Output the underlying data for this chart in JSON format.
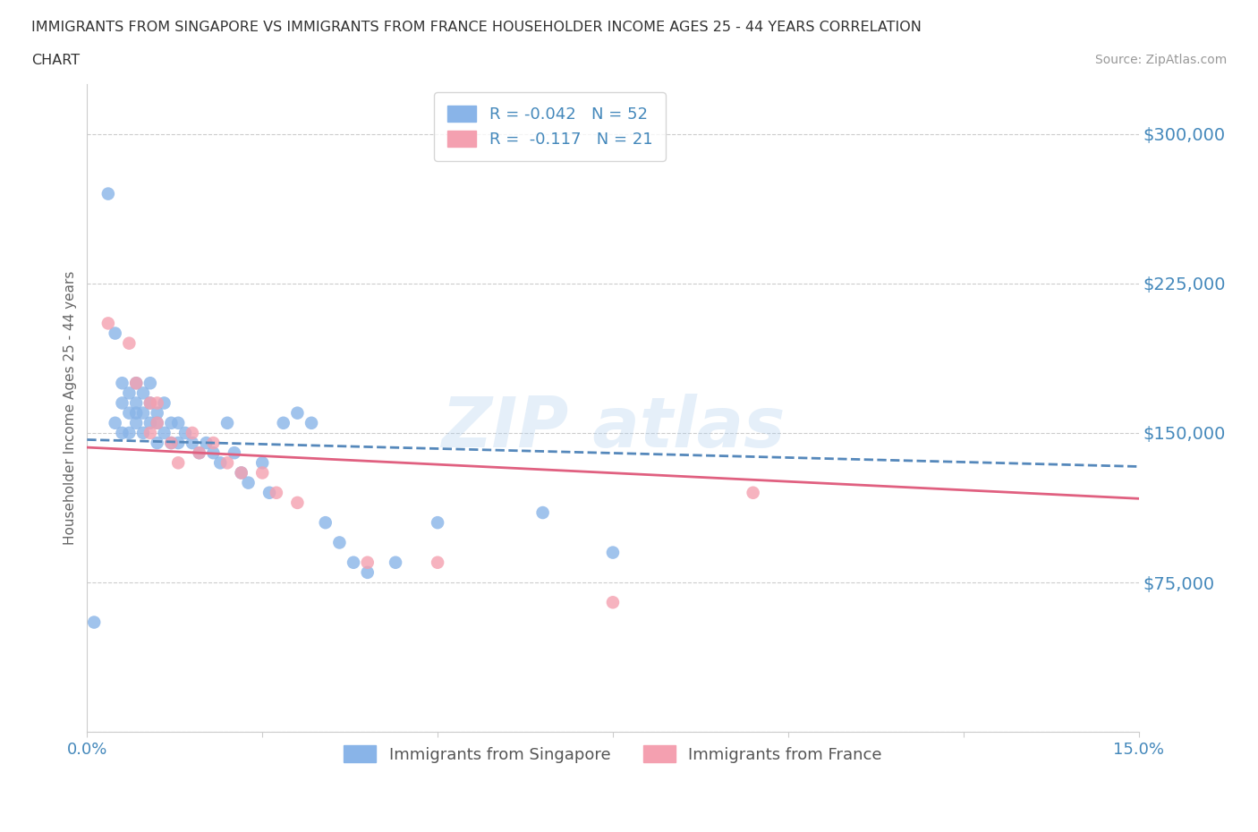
{
  "title_line1": "IMMIGRANTS FROM SINGAPORE VS IMMIGRANTS FROM FRANCE HOUSEHOLDER INCOME AGES 25 - 44 YEARS CORRELATION",
  "title_line2": "CHART",
  "source": "Source: ZipAtlas.com",
  "ylabel": "Householder Income Ages 25 - 44 years",
  "xlim": [
    0.0,
    0.15
  ],
  "ylim": [
    0,
    325000
  ],
  "yticks": [
    0,
    75000,
    150000,
    225000,
    300000
  ],
  "ytick_labels": [
    "",
    "$75,000",
    "$150,000",
    "$225,000",
    "$300,000"
  ],
  "xticks": [
    0.0,
    0.025,
    0.05,
    0.075,
    0.1,
    0.125,
    0.15
  ],
  "xtick_labels": [
    "0.0%",
    "",
    "",
    "",
    "",
    "",
    "15.0%"
  ],
  "r_singapore": -0.042,
  "n_singapore": 52,
  "r_france": -0.117,
  "n_france": 21,
  "color_singapore": "#89B4E8",
  "color_france": "#F4A0B0",
  "trend_singapore_color": "#5588BB",
  "trend_france_color": "#E06080",
  "singapore_x": [
    0.001,
    0.003,
    0.004,
    0.004,
    0.005,
    0.005,
    0.005,
    0.006,
    0.006,
    0.006,
    0.007,
    0.007,
    0.007,
    0.007,
    0.008,
    0.008,
    0.008,
    0.009,
    0.009,
    0.009,
    0.01,
    0.01,
    0.01,
    0.011,
    0.011,
    0.012,
    0.012,
    0.013,
    0.013,
    0.014,
    0.015,
    0.016,
    0.017,
    0.018,
    0.019,
    0.02,
    0.021,
    0.022,
    0.023,
    0.025,
    0.026,
    0.028,
    0.03,
    0.032,
    0.034,
    0.036,
    0.038,
    0.04,
    0.044,
    0.05,
    0.065,
    0.075
  ],
  "singapore_y": [
    55000,
    270000,
    200000,
    155000,
    175000,
    165000,
    150000,
    170000,
    160000,
    150000,
    175000,
    165000,
    160000,
    155000,
    170000,
    160000,
    150000,
    175000,
    165000,
    155000,
    160000,
    155000,
    145000,
    165000,
    150000,
    155000,
    145000,
    155000,
    145000,
    150000,
    145000,
    140000,
    145000,
    140000,
    135000,
    155000,
    140000,
    130000,
    125000,
    135000,
    120000,
    155000,
    160000,
    155000,
    105000,
    95000,
    85000,
    80000,
    85000,
    105000,
    110000,
    90000
  ],
  "france_x": [
    0.003,
    0.006,
    0.007,
    0.009,
    0.009,
    0.01,
    0.01,
    0.012,
    0.013,
    0.015,
    0.016,
    0.018,
    0.02,
    0.022,
    0.025,
    0.027,
    0.03,
    0.04,
    0.05,
    0.075,
    0.095
  ],
  "france_y": [
    205000,
    195000,
    175000,
    165000,
    150000,
    165000,
    155000,
    145000,
    135000,
    150000,
    140000,
    145000,
    135000,
    130000,
    130000,
    120000,
    115000,
    85000,
    85000,
    65000,
    120000
  ],
  "background_color": "#FFFFFF",
  "grid_color": "#CCCCCC",
  "axis_color": "#CCCCCC",
  "tick_color": "#4488BB",
  "title_color": "#333333",
  "legend_r_color": "#4488BB"
}
